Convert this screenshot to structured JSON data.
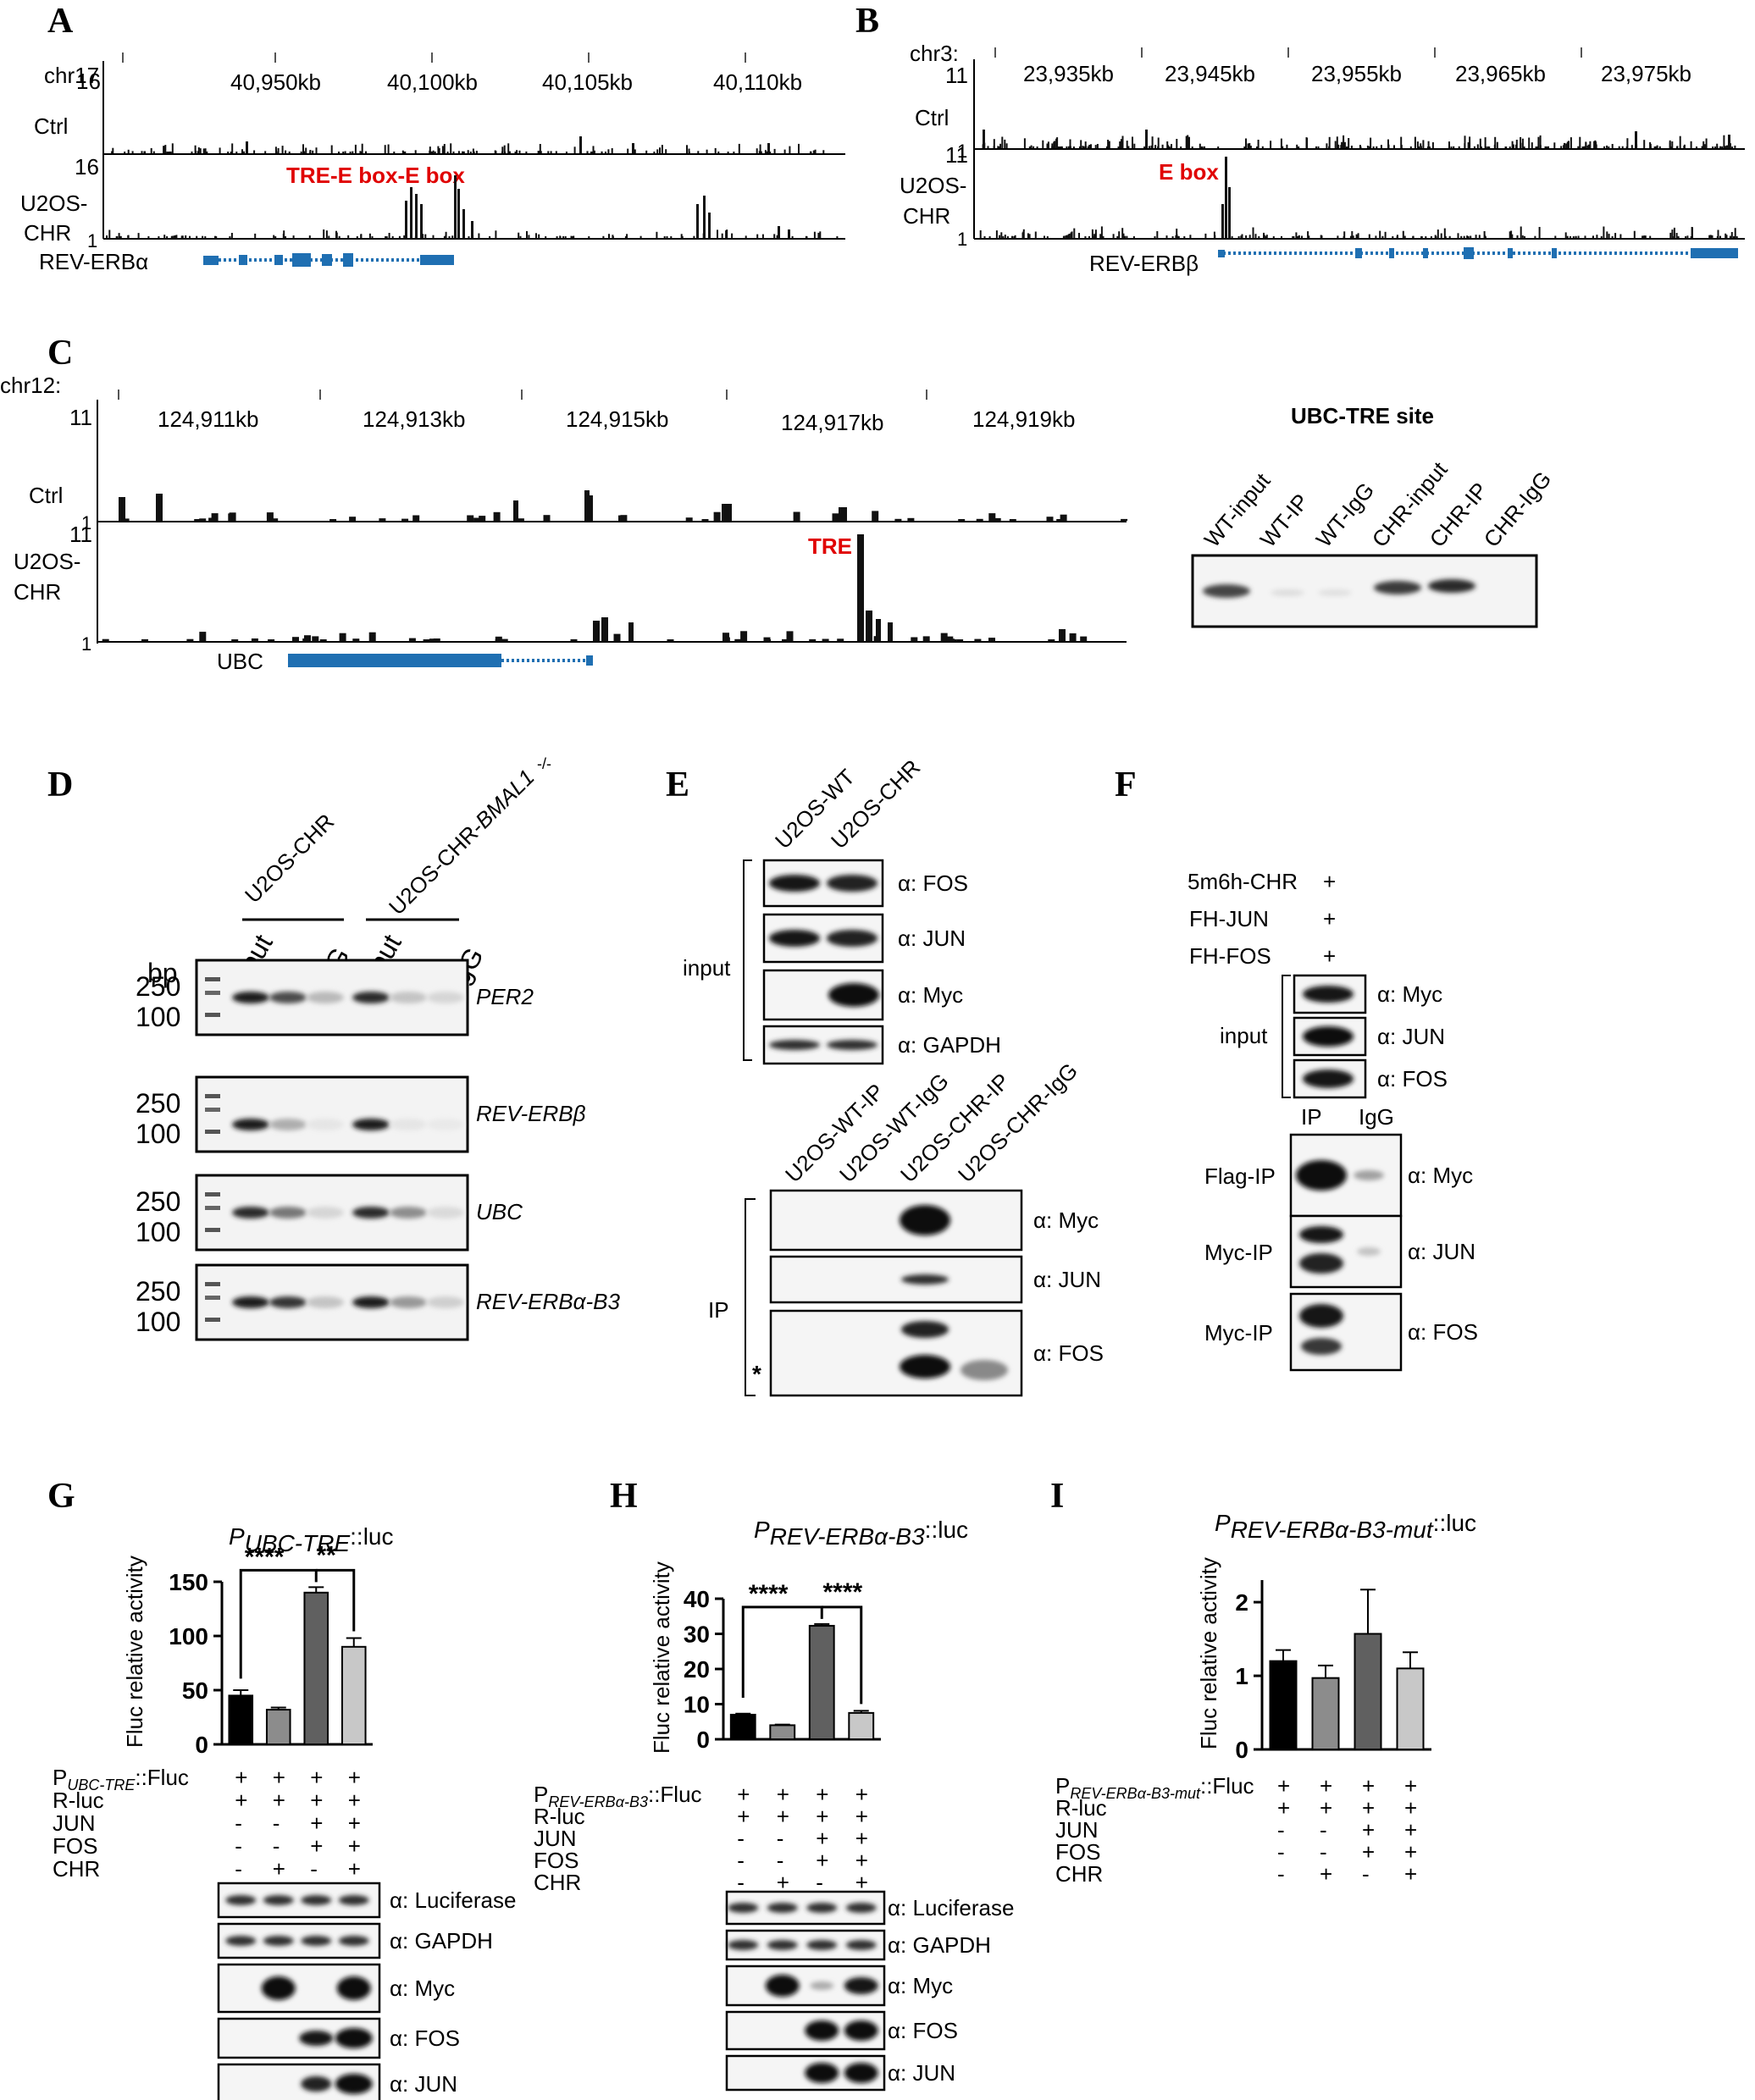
{
  "panels": {
    "A": {
      "letter": "A",
      "chrom": "chr17",
      "ticks": [
        "40,950kb",
        "40,100kb",
        "40,105kb",
        "40,110kb"
      ],
      "track1": {
        "max": "16",
        "label": "Ctrl"
      },
      "track2": {
        "max": "16",
        "min": "1",
        "label_l1": "U2OS-",
        "label_l2": "CHR"
      },
      "annotation": "TRE-E box-E box",
      "gene": "REV-ERBα"
    },
    "B": {
      "letter": "B",
      "chrom": "chr3:",
      "ticks": [
        "23,935kb",
        "23,945kb",
        "23,955kb",
        "23,965kb",
        "23,975kb"
      ],
      "track1": {
        "max": "11",
        "min": "1",
        "label": "Ctrl"
      },
      "track2": {
        "max": "11",
        "min": "1",
        "label_l1": "U2OS-",
        "label_l2": "CHR"
      },
      "annotation": "E box",
      "gene": "REV-ERBβ"
    },
    "C": {
      "letter": "C",
      "chrom": "chr12:",
      "ticks": [
        "124,911kb",
        "124,913kb",
        "124,915kb",
        "124,917kb",
        "124,919kb"
      ],
      "track1": {
        "max": "11",
        "min": "1",
        "label": "Ctrl"
      },
      "track2": {
        "max": "11",
        "min": "1",
        "label_l1": "U2OS-",
        "label_l2": "CHR"
      },
      "annotation": "TRE",
      "gene": "UBC",
      "gel_title": "UBC-TRE site",
      "gel_lanes": [
        "WT-input",
        "WT-IP",
        "WT-IgG",
        "CHR-input",
        "CHR-IP",
        "CHR-IgG"
      ]
    },
    "D": {
      "letter": "D",
      "group1": "U2OS-CHR",
      "group2_prefix": "U2OS-CHR-",
      "group2_gene": "BMAL1",
      "group2_sup": "-/-",
      "lanes": [
        "input",
        "IP",
        "IgG",
        "input",
        "IP",
        "IgG"
      ],
      "bp": "bp",
      "ladder": [
        "250",
        "100"
      ],
      "genes": [
        "PER2",
        "REV-ERBβ",
        "UBC",
        "REV-ERBα-B3"
      ]
    },
    "E": {
      "letter": "E",
      "top_lanes": [
        "U2OS-WT",
        "U2OS-CHR"
      ],
      "input_label": "input",
      "input_blots": [
        "α: FOS",
        "α: JUN",
        "α: Myc",
        "α: GAPDH"
      ],
      "ip_lanes": [
        "U2OS-WT-IP",
        "U2OS-WT-IgG",
        "U2OS-CHR-IP",
        "U2OS-CHR-IgG"
      ],
      "ip_label": "IP",
      "ip_blots": [
        "α: Myc",
        "α: JUN",
        "α: FOS"
      ],
      "star": "*"
    },
    "F": {
      "letter": "F",
      "conditions": [
        {
          "label": "5m6h-CHR",
          "sign": "+"
        },
        {
          "label": "FH-JUN",
          "sign": "+"
        },
        {
          "label": "FH-FOS",
          "sign": "+"
        }
      ],
      "input_label": "input",
      "input_blots": [
        "α: Myc",
        "α: JUN",
        "α: FOS"
      ],
      "lanes": [
        "IP",
        "IgG"
      ],
      "ip_rows": [
        {
          "ip": "Flag-IP",
          "ab": "α: Myc"
        },
        {
          "ip": "Myc-IP",
          "ab": "α: JUN"
        },
        {
          "ip": "Myc-IP",
          "ab": "α: FOS"
        }
      ]
    },
    "G": {
      "letter": "G",
      "title_main": "P",
      "title_sub": "UBC-TRE",
      "title_rest": "::luc",
      "ylabel": "Fluc relative activity",
      "sig": [
        "****",
        "**"
      ],
      "rows": [
        {
          "label": "P",
          "sub": "UBC-TRE",
          "rest": "::Fluc",
          "signs": [
            "+",
            "+",
            "+",
            "+"
          ]
        },
        {
          "label": "R-luc",
          "signs": [
            "+",
            "+",
            "+",
            "+"
          ]
        },
        {
          "label": "JUN",
          "signs": [
            "-",
            "-",
            "+",
            "+"
          ]
        },
        {
          "label": "FOS",
          "signs": [
            "-",
            "-",
            "+",
            "+"
          ]
        },
        {
          "label": "CHR",
          "signs": [
            "-",
            "+",
            "-",
            "+"
          ]
        }
      ],
      "blots": [
        "α:  Luciferase",
        "α: GAPDH",
        "α:  Myc",
        "α: FOS",
        "α: JUN"
      ]
    },
    "H": {
      "letter": "H",
      "title_main": "P",
      "title_sub": "REV-ERBα-B3",
      "title_rest": "::luc",
      "ylabel": "Fluc relative activity",
      "sig": [
        "****",
        "****"
      ],
      "rows": [
        {
          "label": "P",
          "sub": "REV-ERBα-B3",
          "rest": "::Fluc",
          "signs": [
            "+",
            "+",
            "+",
            "+"
          ]
        },
        {
          "label": "R-luc",
          "signs": [
            "+",
            "+",
            "+",
            "+"
          ]
        },
        {
          "label": "JUN",
          "signs": [
            "-",
            "-",
            "+",
            "+"
          ]
        },
        {
          "label": "FOS",
          "signs": [
            "-",
            "-",
            "+",
            "+"
          ]
        },
        {
          "label": "CHR",
          "signs": [
            "-",
            "+",
            "-",
            "+"
          ]
        }
      ],
      "blots": [
        "α: Luciferase",
        "α: GAPDH",
        "α: Myc",
        "α: FOS",
        "α: JUN"
      ]
    },
    "I": {
      "letter": "I",
      "title_main": "P",
      "title_sub": "REV-ERBα-B3-mut",
      "title_rest": "::luc",
      "ylabel": "Fluc relative activity",
      "rows": [
        {
          "label": "P",
          "sub": "REV-ERBα-B3-mut",
          "rest": "::Fluc",
          "signs": [
            "+",
            "+",
            "+",
            "+"
          ]
        },
        {
          "label": "R-luc",
          "signs": [
            "+",
            "+",
            "+",
            "+"
          ]
        },
        {
          "label": "JUN",
          "signs": [
            "-",
            "-",
            "+",
            "+"
          ]
        },
        {
          "label": "FOS",
          "signs": [
            "-",
            "-",
            "+",
            "+"
          ]
        },
        {
          "label": "CHR",
          "signs": [
            "-",
            "+",
            "-",
            "+"
          ]
        }
      ]
    }
  },
  "colors": {
    "bar1": "#000000",
    "bar2": "#8c8c8c",
    "bar3": "#606060",
    "bar4": "#c8c8c8",
    "gene": "#1f6fb2",
    "annotation": "#e00000"
  },
  "chart_data": [
    {
      "type": "bar",
      "panel": "G",
      "categories": [
        "1",
        "2",
        "3",
        "4"
      ],
      "values": [
        45,
        32,
        140,
        90
      ],
      "errors": [
        5,
        2,
        5,
        8
      ],
      "ylim": [
        0,
        150
      ],
      "yticks": [
        0,
        50,
        100,
        150
      ],
      "ylabel": "Fluc relative activity"
    },
    {
      "type": "bar",
      "panel": "H",
      "categories": [
        "1",
        "2",
        "3",
        "4"
      ],
      "values": [
        7,
        4,
        32.3,
        7.5
      ],
      "errors": [
        0.3,
        0.2,
        0.5,
        0.6
      ],
      "ylim": [
        0,
        40
      ],
      "yticks": [
        0,
        10,
        20,
        30,
        40
      ],
      "ylabel": "Fluc relative activity"
    },
    {
      "type": "bar",
      "panel": "I",
      "categories": [
        "1",
        "2",
        "3",
        "4"
      ],
      "values": [
        1.2,
        0.97,
        1.57,
        1.1
      ],
      "errors": [
        0.15,
        0.17,
        0.6,
        0.22
      ],
      "ylim": [
        0,
        2.3
      ],
      "yticks": [
        0,
        1,
        2
      ],
      "ylabel": "Fluc relative activity"
    }
  ]
}
